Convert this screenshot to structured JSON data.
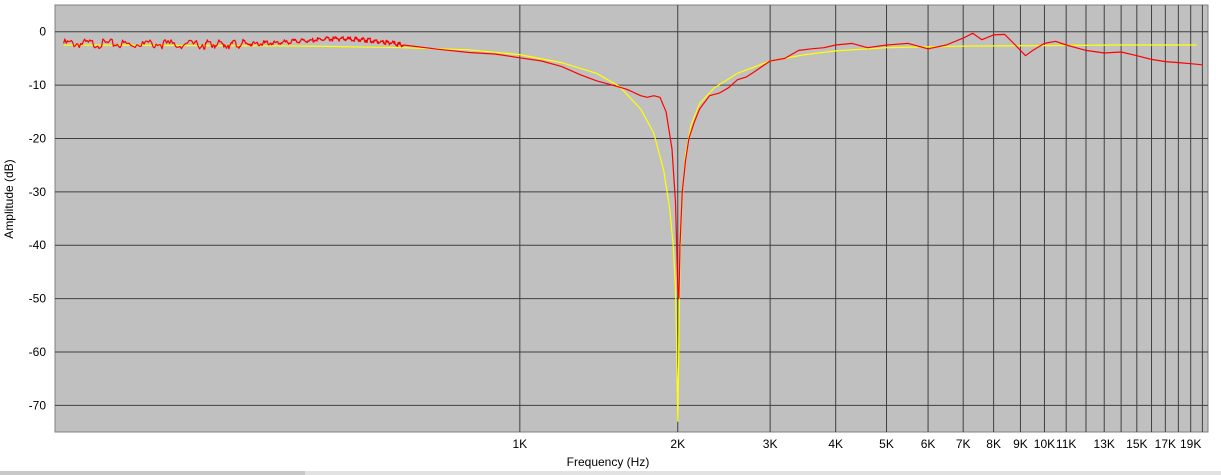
{
  "chart_data": {
    "type": "line",
    "xlabel": "Frequency (Hz)",
    "ylabel": "Amplitude (dB)",
    "xscale": "log",
    "xlim": [
      130,
      20500
    ],
    "ylim": [
      -75,
      5
    ],
    "grid": true,
    "x_ticks": [
      {
        "value": 1000,
        "label": "1K"
      },
      {
        "value": 2000,
        "label": "2K"
      },
      {
        "value": 3000,
        "label": "3K"
      },
      {
        "value": 4000,
        "label": "4K"
      },
      {
        "value": 5000,
        "label": "5K"
      },
      {
        "value": 6000,
        "label": "6K"
      },
      {
        "value": 7000,
        "label": "7K"
      },
      {
        "value": 8000,
        "label": "8K"
      },
      {
        "value": 9000,
        "label": "9K"
      },
      {
        "value": 10000,
        "label": "10K"
      },
      {
        "value": 11000,
        "label": "11K"
      },
      {
        "value": 13000,
        "label": "13K"
      },
      {
        "value": 15000,
        "label": "15K"
      },
      {
        "value": 17000,
        "label": "17K"
      },
      {
        "value": 19000,
        "label": "19K"
      }
    ],
    "x_minor_gridlines": [
      12000,
      14000,
      16000,
      18000,
      20000
    ],
    "y_ticks": [
      0,
      -10,
      -20,
      -30,
      -40,
      -50,
      -60,
      -70
    ],
    "colors": {
      "plot_bg": "#c0c0c0",
      "grid": "#404040",
      "measured": "#ff0000",
      "model": "#ffff00"
    },
    "series": [
      {
        "color": "#ffff00",
        "x": [
          135,
          250,
          400,
          600,
          800,
          1000,
          1200,
          1400,
          1550,
          1700,
          1800,
          1880,
          1930,
          1960,
          1980,
          1990,
          1995,
          2000,
          2005,
          2010,
          2020,
          2040,
          2070,
          2120,
          2200,
          2350,
          2600,
          3000,
          3500,
          4000,
          5000,
          7000,
          10000,
          14000,
          19500
        ],
        "y": [
          -2.5,
          -2.6,
          -2.7,
          -3.0,
          -3.4,
          -4.3,
          -5.8,
          -7.8,
          -10.3,
          -14.5,
          -19.0,
          -26.0,
          -33.0,
          -40.0,
          -48.0,
          -58.0,
          -66.0,
          -73.0,
          -66.0,
          -58.0,
          -42.0,
          -31.0,
          -23.0,
          -17.5,
          -13.5,
          -10.5,
          -7.8,
          -5.5,
          -4.3,
          -3.6,
          -3.0,
          -2.7,
          -2.6,
          -2.5,
          -2.5
        ]
      },
      {
        "color": "#ff0000",
        "x": [
          135,
          180,
          250,
          300,
          350,
          400,
          450,
          500,
          550,
          600,
          700,
          800,
          900,
          1000,
          1100,
          1200,
          1300,
          1400,
          1500,
          1600,
          1700,
          1750,
          1800,
          1850,
          1900,
          1950,
          1980,
          2000,
          2010,
          2020,
          2040,
          2070,
          2100,
          2150,
          2200,
          2300,
          2400,
          2500,
          2600,
          2700,
          2800,
          3000,
          3200,
          3400,
          3600,
          3800,
          4000,
          4300,
          4600,
          5000,
          5500,
          6000,
          6500,
          7000,
          7300,
          7600,
          8000,
          8400,
          8800,
          9200,
          9500,
          10000,
          10500,
          11000,
          12000,
          13000,
          14000,
          15000,
          16000,
          17000,
          18000,
          19000,
          20000
        ],
        "y": [
          -2.2,
          -2.3,
          -2.4,
          -2.3,
          -2.0,
          -1.6,
          -1.3,
          -1.5,
          -1.9,
          -2.5,
          -3.3,
          -3.9,
          -4.2,
          -4.9,
          -5.5,
          -6.5,
          -8.0,
          -9.2,
          -10.0,
          -10.8,
          -12.0,
          -12.3,
          -12.0,
          -12.3,
          -15.0,
          -22.0,
          -32.0,
          -48.0,
          -50.0,
          -40.0,
          -30.0,
          -24.0,
          -20.0,
          -17.0,
          -14.5,
          -12.0,
          -11.5,
          -10.5,
          -9.0,
          -8.5,
          -7.5,
          -5.5,
          -5.0,
          -3.5,
          -3.2,
          -3.0,
          -2.5,
          -2.2,
          -3.0,
          -2.5,
          -2.2,
          -3.2,
          -2.5,
          -1.2,
          -0.3,
          -1.5,
          -0.6,
          -0.5,
          -2.5,
          -4.5,
          -3.5,
          -2.2,
          -1.8,
          -2.5,
          -3.5,
          -4.0,
          -3.8,
          -4.5,
          -5.2,
          -5.6,
          -5.8,
          -6.0,
          -6.2
        ]
      }
    ]
  }
}
